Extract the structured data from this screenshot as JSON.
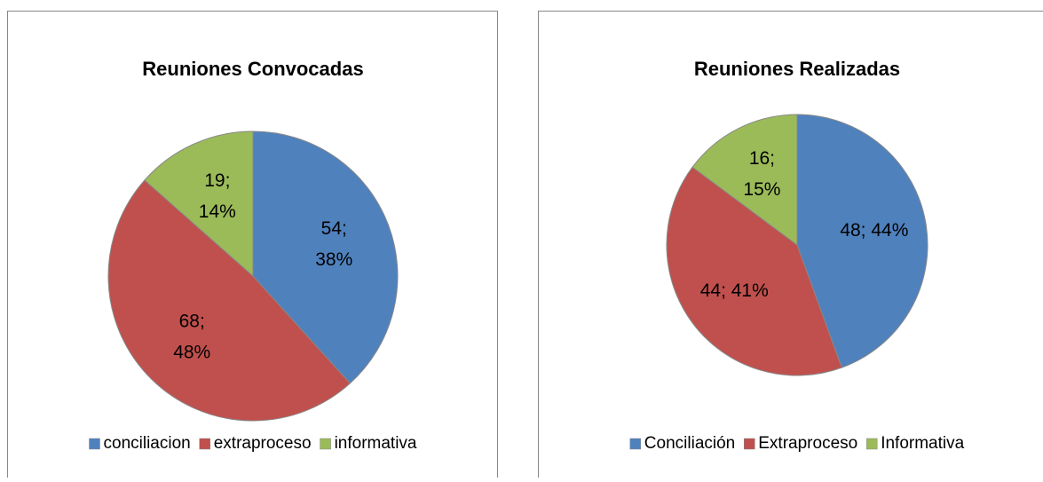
{
  "chart_data": [
    {
      "type": "pie",
      "title": "Reuniones Convocadas",
      "categories": [
        "conciliacion",
        "extraproceso",
        "informativa"
      ],
      "values": [
        54,
        68,
        19
      ],
      "value_labels": [
        [
          "54;",
          "38%"
        ],
        [
          "68;",
          "48%"
        ],
        [
          "19;",
          "14%"
        ]
      ],
      "colors": [
        "#4f81bd",
        "#c0504d",
        "#9bbb59"
      ],
      "legend": "bottom"
    },
    {
      "type": "pie",
      "title": "Reuniones Realizadas",
      "categories": [
        "Conciliación",
        "Extraproceso",
        "Informativa"
      ],
      "values": [
        48,
        44,
        16
      ],
      "value_labels": [
        "48; 44%",
        "44; 41%",
        [
          "16;",
          "15%"
        ]
      ],
      "colors": [
        "#4f81bd",
        "#c0504d",
        "#9bbb59"
      ],
      "legend": "bottom"
    }
  ]
}
